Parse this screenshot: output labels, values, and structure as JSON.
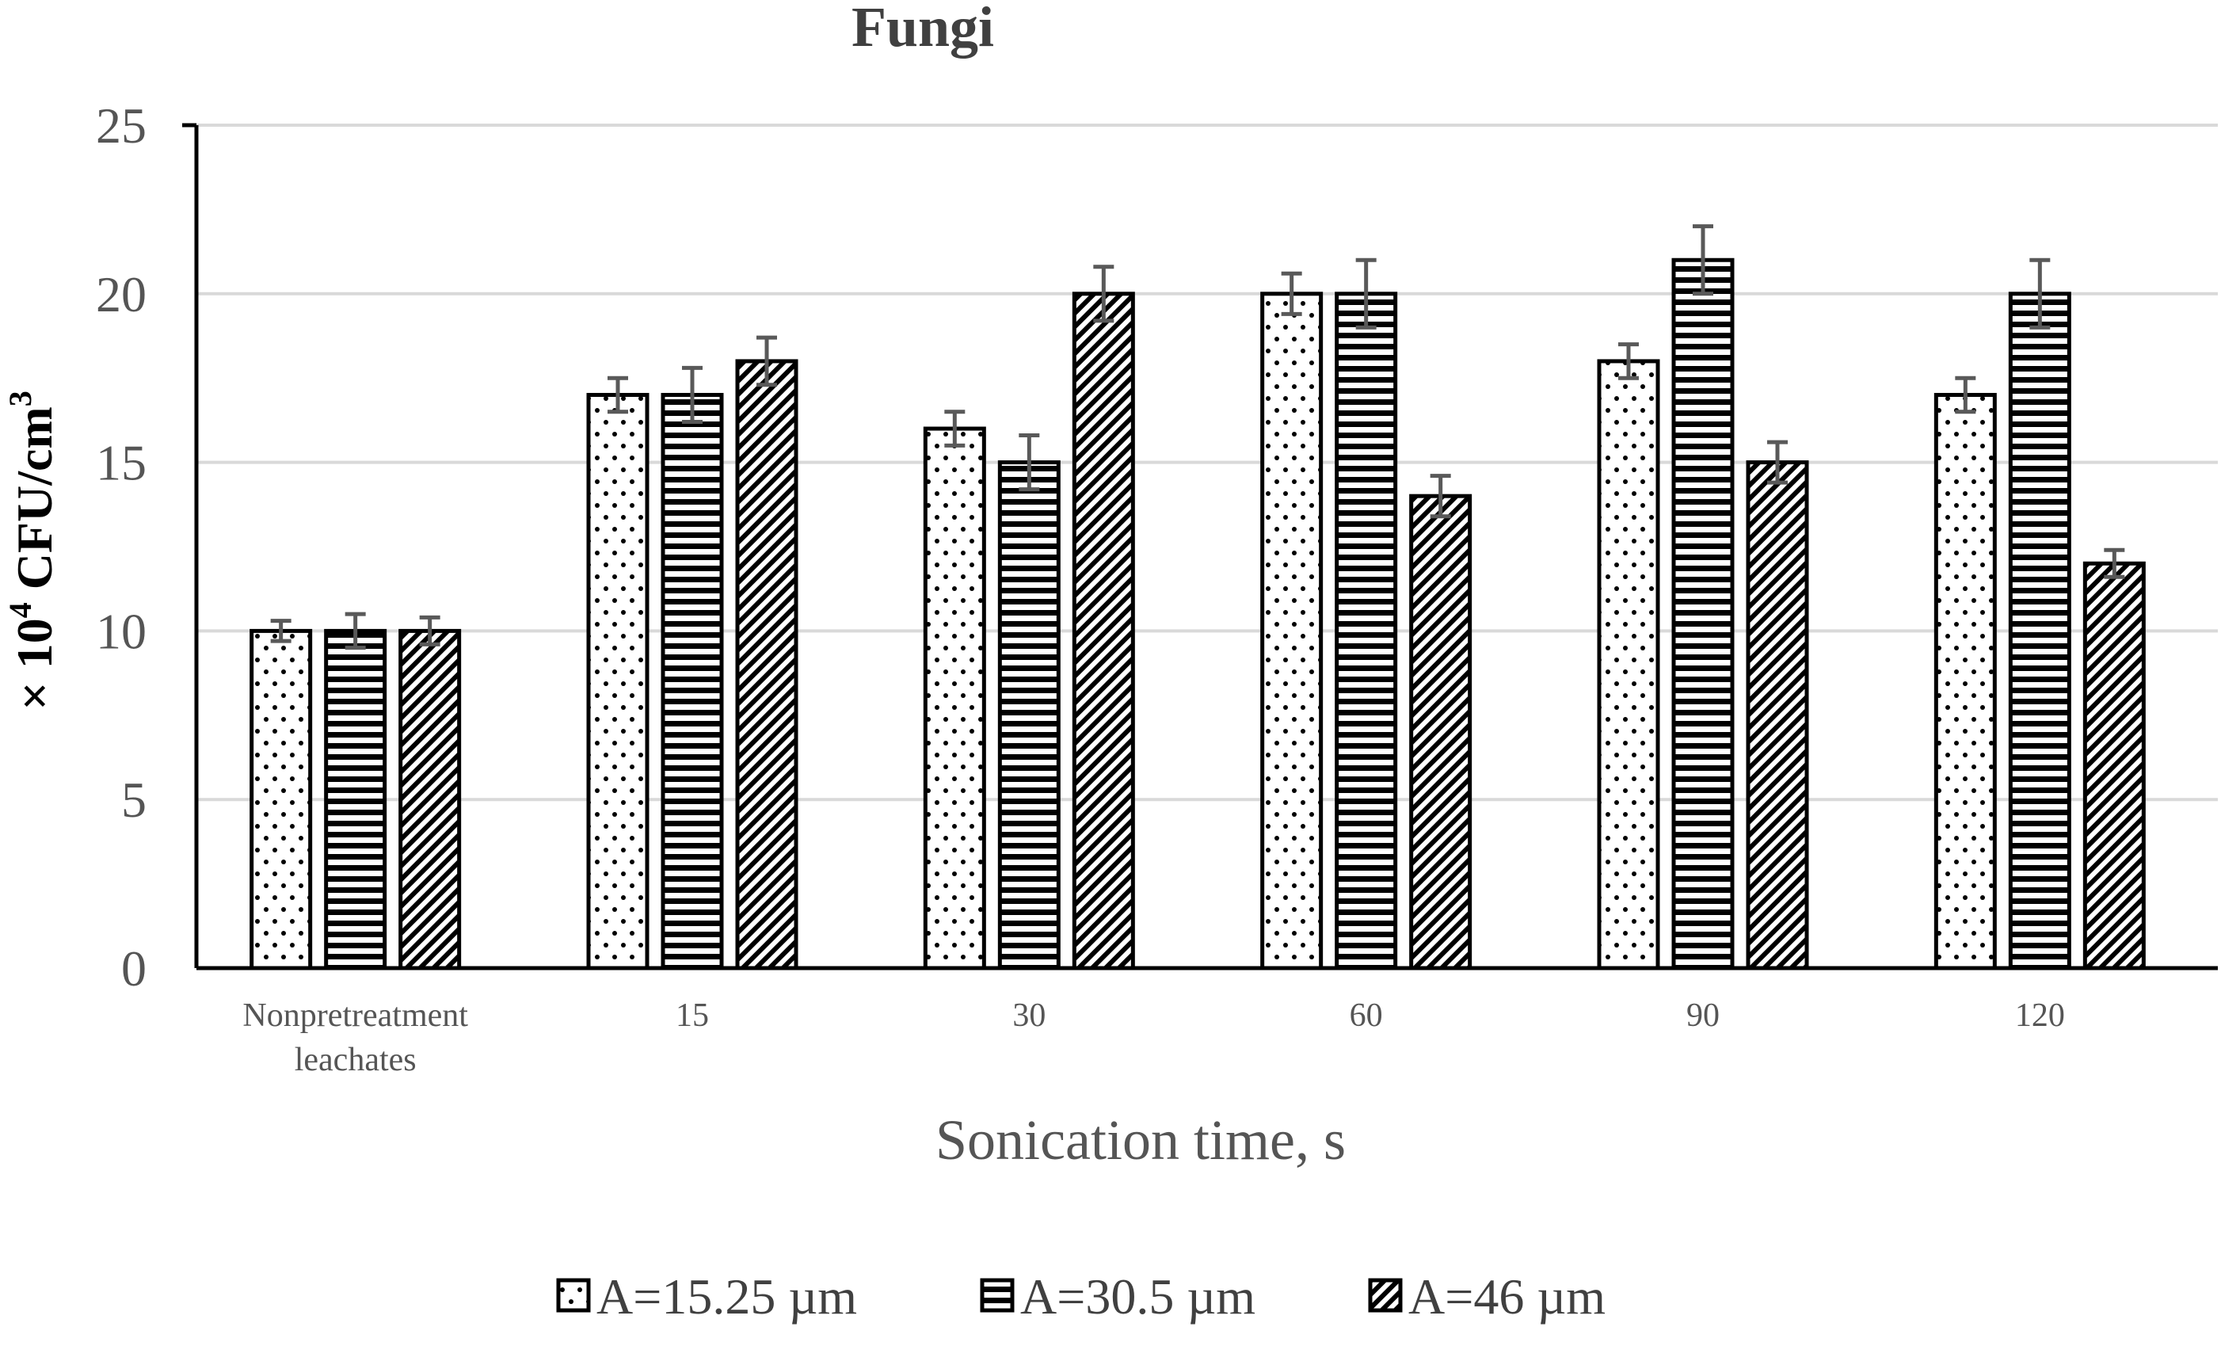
{
  "chart_data": {
    "type": "bar",
    "title": "Fungi",
    "xlabel": "Sonication time, s",
    "ylabel_prefix": "× 10",
    "ylabel_exp": "4",
    "ylabel_mid": " CFU/cm",
    "ylabel_exp2": "3",
    "ylim": [
      0,
      25
    ],
    "yticks": [
      0,
      5,
      10,
      15,
      20,
      25
    ],
    "ytick_labels": [
      "0",
      "5",
      "10",
      "15",
      "20",
      "25"
    ],
    "categories": [
      "Nonpretreatment leachates",
      "15",
      "30",
      "60",
      "90",
      "120"
    ],
    "category_lines": [
      [
        "Nonpretreatment",
        "leachates"
      ],
      [
        "15"
      ],
      [
        "30"
      ],
      [
        "60"
      ],
      [
        "90"
      ],
      [
        "120"
      ]
    ],
    "grid": true,
    "legend_position": "bottom",
    "series": [
      {
        "name": "A=15.25 µm",
        "pattern": "dots",
        "values": [
          10,
          17,
          16,
          20,
          18,
          17
        ],
        "errors": [
          0.3,
          0.5,
          0.5,
          0.6,
          0.5,
          0.5
        ]
      },
      {
        "name": "A=30.5 µm",
        "pattern": "hlines",
        "values": [
          10,
          17,
          15,
          20,
          21,
          20
        ],
        "errors": [
          0.5,
          0.8,
          0.8,
          1.0,
          1.0,
          1.0
        ]
      },
      {
        "name": "A=46 µm",
        "pattern": "diag",
        "values": [
          10,
          18,
          20,
          14,
          15,
          12
        ],
        "errors": [
          0.4,
          0.7,
          0.8,
          0.6,
          0.6,
          0.4
        ]
      }
    ],
    "colors": {
      "axis": "#000000",
      "grid": "#d9d9d9",
      "bar_edge": "#000000",
      "error": "#595959"
    }
  }
}
